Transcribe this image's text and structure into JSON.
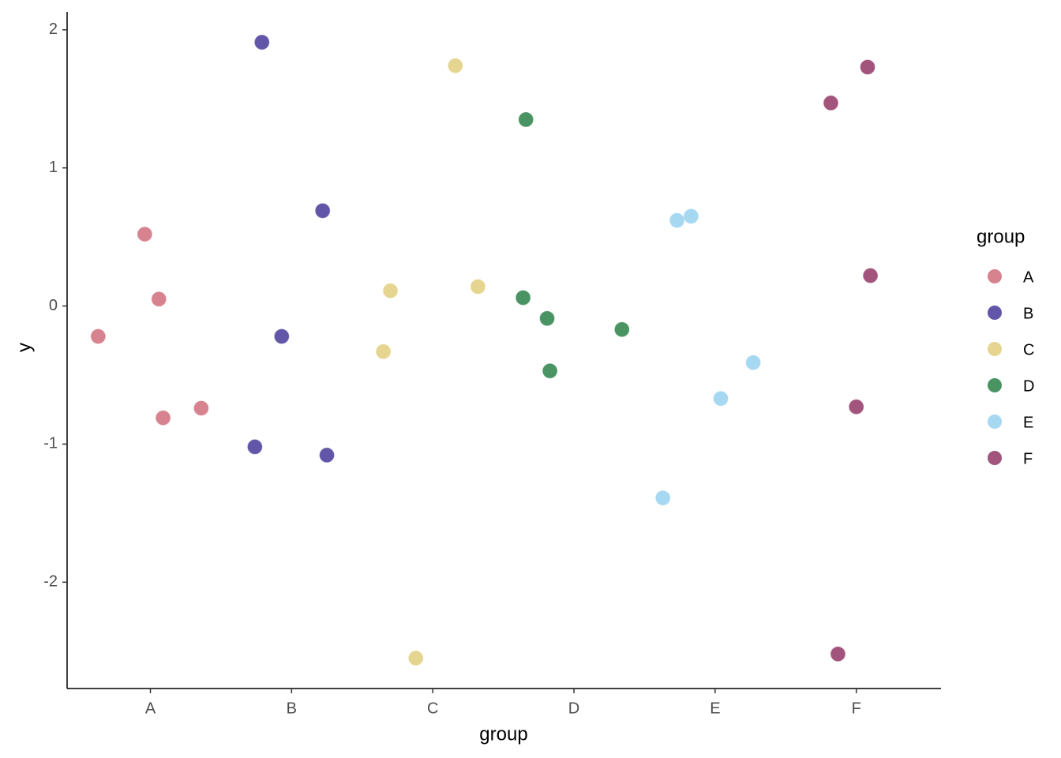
{
  "chart_data": {
    "type": "scatter",
    "x_label": "group",
    "y_label": "y",
    "legend_title": "group",
    "legend": "right",
    "xlim": [
      0.41,
      6.6
    ],
    "ylim": [
      -2.77,
      2.13
    ],
    "xticks": [
      {
        "value": 1,
        "label": "A"
      },
      {
        "value": 2,
        "label": "B"
      },
      {
        "value": 3,
        "label": "C"
      },
      {
        "value": 4,
        "label": "D"
      },
      {
        "value": 5,
        "label": "E"
      },
      {
        "value": 6,
        "label": "F"
      }
    ],
    "yticks": [
      -2,
      -1,
      0,
      1,
      2
    ],
    "series": [
      {
        "name": "A",
        "color": "#d7838f",
        "x": [
          0.63,
          0.96,
          1.06,
          1.09,
          1.36
        ],
        "values": [
          -0.22,
          0.52,
          0.05,
          -0.81,
          -0.74
        ]
      },
      {
        "name": "B",
        "color": "#6256a8",
        "x": [
          1.79,
          2.22,
          1.93,
          1.74,
          2.25
        ],
        "values": [
          1.91,
          0.69,
          -0.22,
          -1.02,
          -1.08
        ]
      },
      {
        "name": "C",
        "color": "#e6d591",
        "x": [
          3.16,
          2.7,
          3.32,
          2.65,
          2.88
        ],
        "values": [
          1.74,
          0.11,
          0.14,
          -0.33,
          -2.55
        ]
      },
      {
        "name": "D",
        "color": "#4a9464",
        "x": [
          3.66,
          3.64,
          3.81,
          4.34,
          3.83
        ],
        "values": [
          1.35,
          0.06,
          -0.09,
          -0.17,
          -0.47
        ]
      },
      {
        "name": "E",
        "color": "#a6d8f2",
        "x": [
          4.73,
          4.83,
          5.27,
          5.04,
          4.63
        ],
        "values": [
          0.62,
          0.65,
          -0.41,
          -0.67,
          -1.39
        ]
      },
      {
        "name": "F",
        "color": "#a3547c",
        "x": [
          5.82,
          6.08,
          6.1,
          6.0,
          5.87
        ],
        "values": [
          1.47,
          1.73,
          0.22,
          -0.73,
          -2.52
        ]
      }
    ]
  }
}
